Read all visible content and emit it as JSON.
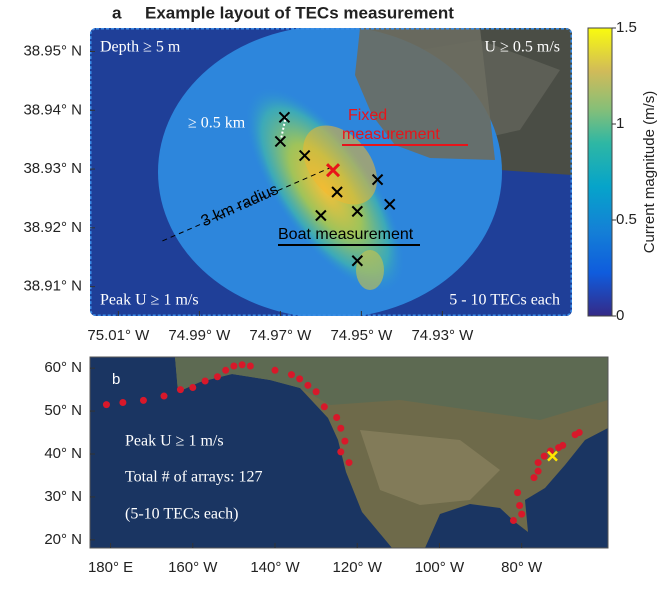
{
  "panel_a": {
    "label": "a",
    "title": "Example layout of TECs measurement",
    "annotations": {
      "depth": "Depth ≥ 5 m",
      "u_min": "U ≥ 0.5 m/s",
      "spacing": "≥ 0.5 km",
      "fixed_1": "Fixed",
      "fixed_2": "measurement",
      "radius": "3 km radius",
      "boat": "Boat measurement",
      "peak": "Peak U ≥ 1 m/s",
      "count": "5 - 10 TECs each"
    },
    "xlim": [
      -75.017,
      -74.898
    ],
    "ylim": [
      38.905,
      38.954
    ],
    "xticks": [
      {
        "value": -75.01,
        "label": "75.01° W"
      },
      {
        "value": -74.99,
        "label": "74.99° W"
      },
      {
        "value": -74.97,
        "label": "74.97° W"
      },
      {
        "value": -74.95,
        "label": "74.95° W"
      },
      {
        "value": -74.93,
        "label": "74.93° W"
      }
    ],
    "yticks": [
      {
        "value": 38.95,
        "label": "38.95° N"
      },
      {
        "value": 38.94,
        "label": "38.94° N"
      },
      {
        "value": 38.93,
        "label": "38.93° N"
      },
      {
        "value": 38.92,
        "label": "38.92° N"
      },
      {
        "value": 38.91,
        "label": "38.91° N"
      }
    ],
    "boat_points": {
      "lon": [
        -74.969,
        -74.97,
        -74.964,
        -74.956,
        -74.96,
        -74.951,
        -74.946,
        -74.943,
        -74.951
      ],
      "lat": [
        38.9388,
        38.9347,
        38.9323,
        38.9261,
        38.9221,
        38.9228,
        38.9282,
        38.924,
        38.9144
      ],
      "color": "#000000"
    },
    "fixed_point": {
      "lon": -74.957,
      "lat": 38.9298,
      "color": "#e8141a"
    }
  },
  "colorbar": {
    "label": "Current magnitude (m/s)",
    "lim": [
      0,
      1.5
    ],
    "ticks": [
      0,
      0.5,
      1,
      1.5
    ]
  },
  "panel_b": {
    "label": "b",
    "annotations": {
      "peak": "Peak U ≥ 1 m/s",
      "total": "Total # of arrays: 127",
      "each": "(5-10 TECs each)"
    },
    "xlim": [
      -185,
      -59
    ],
    "ylim": [
      18.1,
      62.6
    ],
    "xticks": [
      {
        "value": -180,
        "label": "180° E"
      },
      {
        "value": -160,
        "label": "160° W"
      },
      {
        "value": -140,
        "label": "140° W"
      },
      {
        "value": -120,
        "label": "120° W"
      },
      {
        "value": -100,
        "label": "100° W"
      },
      {
        "value": -80,
        "label": "80° W"
      }
    ],
    "yticks": [
      {
        "value": 60,
        "label": "60° N"
      },
      {
        "value": 50,
        "label": "50° N"
      },
      {
        "value": 40,
        "label": "40° N"
      },
      {
        "value": 30,
        "label": "30° N"
      },
      {
        "value": 20,
        "label": "20° N"
      }
    ],
    "sites": {
      "color": "#d8182a",
      "lon": [
        -181,
        -177,
        -172,
        -167,
        -163,
        -160,
        -157,
        -154,
        -152,
        -150,
        -148,
        -146,
        -140,
        -136,
        -134,
        -132,
        -130,
        -128,
        -125,
        -124,
        -123,
        -124,
        -122,
        -77,
        -76,
        -76,
        -74.5,
        -73,
        -71,
        -70,
        -67,
        -66,
        -81,
        -80.5,
        -80,
        -82
      ],
      "lat": [
        51.5,
        52,
        52.5,
        53.5,
        55,
        55.5,
        57,
        58,
        59.5,
        60.5,
        60.8,
        60.5,
        59.5,
        58.5,
        57.5,
        56,
        54.5,
        51,
        48.5,
        46,
        43,
        40.5,
        38,
        34.5,
        36,
        38,
        39.5,
        40.7,
        41.5,
        42,
        44.5,
        45,
        31,
        28,
        26,
        24.5
      ]
    },
    "highlight": {
      "lon": -72.5,
      "lat": 39.5,
      "color": "#ffe600"
    }
  }
}
